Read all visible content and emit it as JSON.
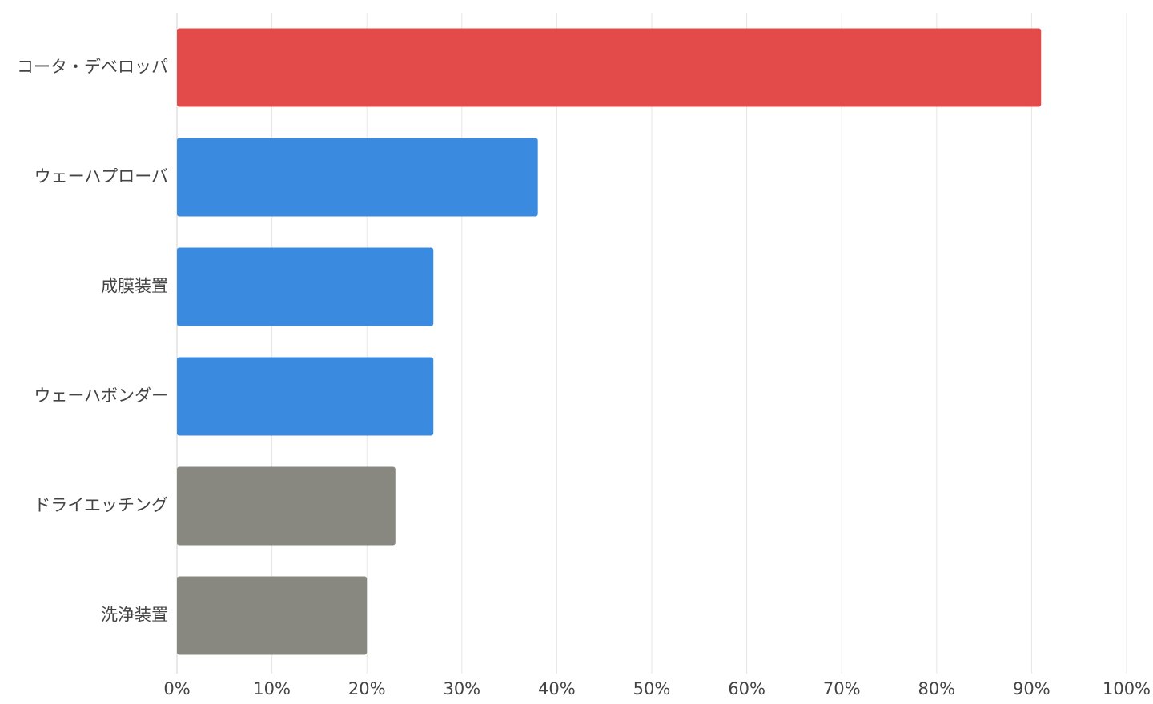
{
  "chart_data": {
    "type": "bar",
    "orientation": "horizontal",
    "categories": [
      "コータ・デベロッパ",
      "ウェーハプローバ",
      "成膜装置",
      "ウェーハボンダー",
      "ドライエッチング",
      "洗浄装置"
    ],
    "values": [
      91,
      38,
      27,
      27,
      23,
      20
    ],
    "colors": [
      "#e34b4b",
      "#3a8bdf",
      "#3a8bdf",
      "#3a8bdf",
      "#888880",
      "#888880"
    ],
    "xlim": [
      0,
      100
    ],
    "xticks": [
      {
        "value": 0,
        "label": "0%"
      },
      {
        "value": 10,
        "label": "10%"
      },
      {
        "value": 20,
        "label": "20%"
      },
      {
        "value": 30,
        "label": "30%"
      },
      {
        "value": 40,
        "label": "40%"
      },
      {
        "value": 50,
        "label": "50%"
      },
      {
        "value": 60,
        "label": "60%"
      },
      {
        "value": 70,
        "label": "70%"
      },
      {
        "value": 80,
        "label": "80%"
      },
      {
        "value": 90,
        "label": "90%"
      },
      {
        "value": 100,
        "label": "100%"
      }
    ],
    "grid": true
  }
}
